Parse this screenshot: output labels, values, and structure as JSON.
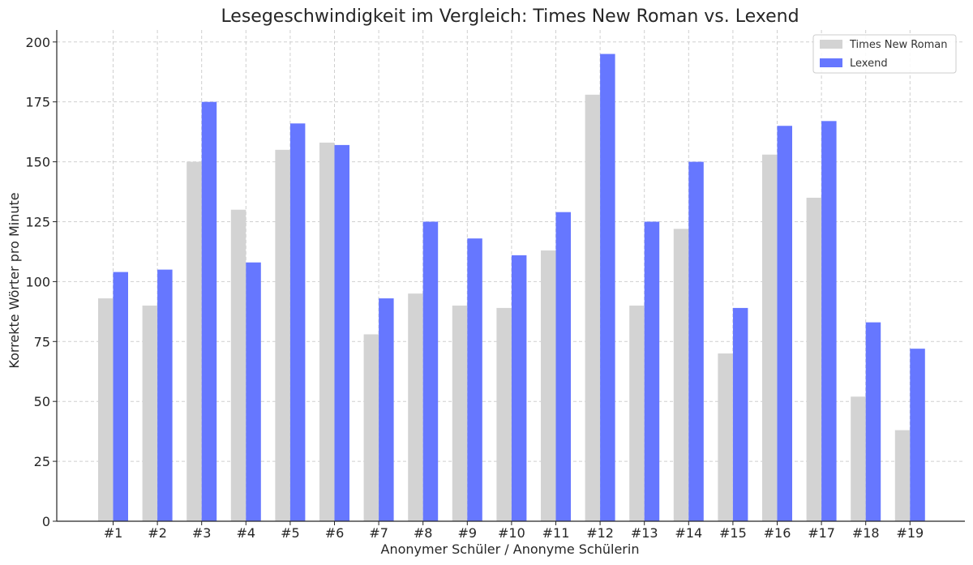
{
  "chart_data": {
    "type": "bar",
    "title": "Lesegeschwindigkeit im Vergleich: Times New Roman vs. Lexend",
    "xlabel": "Anonymer Schüler / Anonyme Schülerin",
    "ylabel": "Korrekte Wörter pro Minute",
    "categories": [
      "#1",
      "#2",
      "#3",
      "#4",
      "#5",
      "#6",
      "#7",
      "#8",
      "#9",
      "#10",
      "#11",
      "#12",
      "#13",
      "#14",
      "#15",
      "#16",
      "#17",
      "#18",
      "#19"
    ],
    "series": [
      {
        "name": "Times New Roman",
        "color": "#d3d3d3",
        "values": [
          93,
          90,
          150,
          130,
          155,
          158,
          78,
          95,
          90,
          89,
          113,
          178,
          90,
          122,
          70,
          153,
          135,
          52,
          38
        ]
      },
      {
        "name": "Lexend",
        "color": "#6677ff",
        "values": [
          104,
          105,
          175,
          108,
          166,
          157,
          93,
          125,
          118,
          111,
          129,
          195,
          125,
          150,
          89,
          165,
          167,
          83,
          72
        ]
      }
    ],
    "ylim": [
      0,
      205
    ],
    "yticks": [
      0,
      25,
      50,
      75,
      100,
      125,
      150,
      175,
      200
    ],
    "grid": true,
    "legend_position": "top-right"
  }
}
